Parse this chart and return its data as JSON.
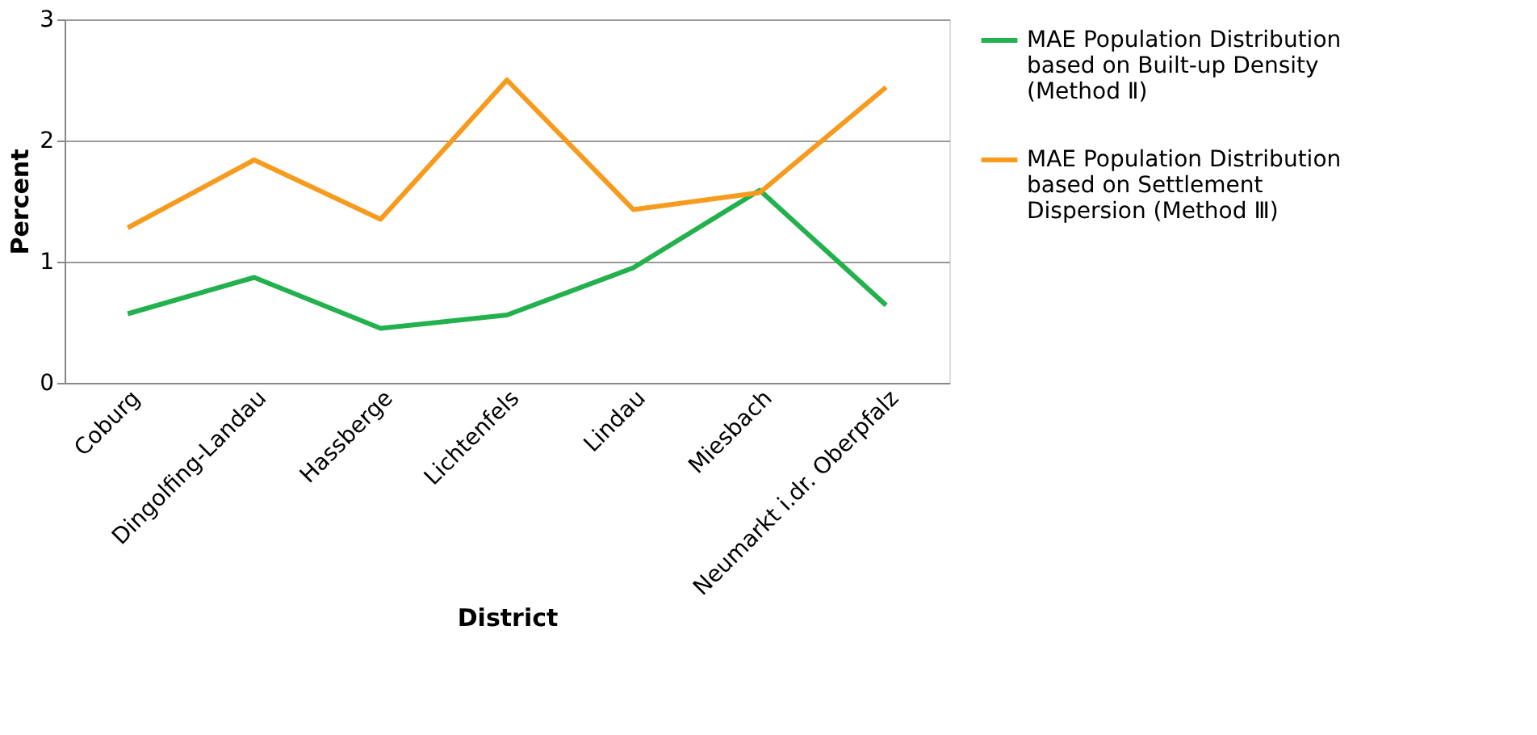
{
  "chart_data": {
    "type": "line",
    "xlabel": "District",
    "ylabel": "Percent",
    "categories": [
      "Coburg",
      "Dingolfing-Landau",
      "Hassberge",
      "Lichtenfels",
      "Lindau",
      "Miesbach",
      "Neumarkt i.dr. Oberpfalz"
    ],
    "series": [
      {
        "name": "MAE Population Distribution based on Built-up Density (Method Ⅱ)",
        "color": "#22b14c",
        "values": [
          0.57,
          0.87,
          0.45,
          0.56,
          0.95,
          1.59,
          0.64
        ]
      },
      {
        "name": "MAE Population Distribution based on Settlement Dispersion (Method Ⅲ)",
        "color": "#f79b1e",
        "values": [
          1.28,
          1.84,
          1.35,
          2.5,
          1.43,
          1.57,
          2.44
        ]
      }
    ],
    "ylim": [
      0,
      3
    ],
    "yticks": [
      0,
      1,
      2,
      3
    ],
    "grid": "y",
    "legend": "right",
    "marker": "none",
    "line_style": "solid"
  }
}
